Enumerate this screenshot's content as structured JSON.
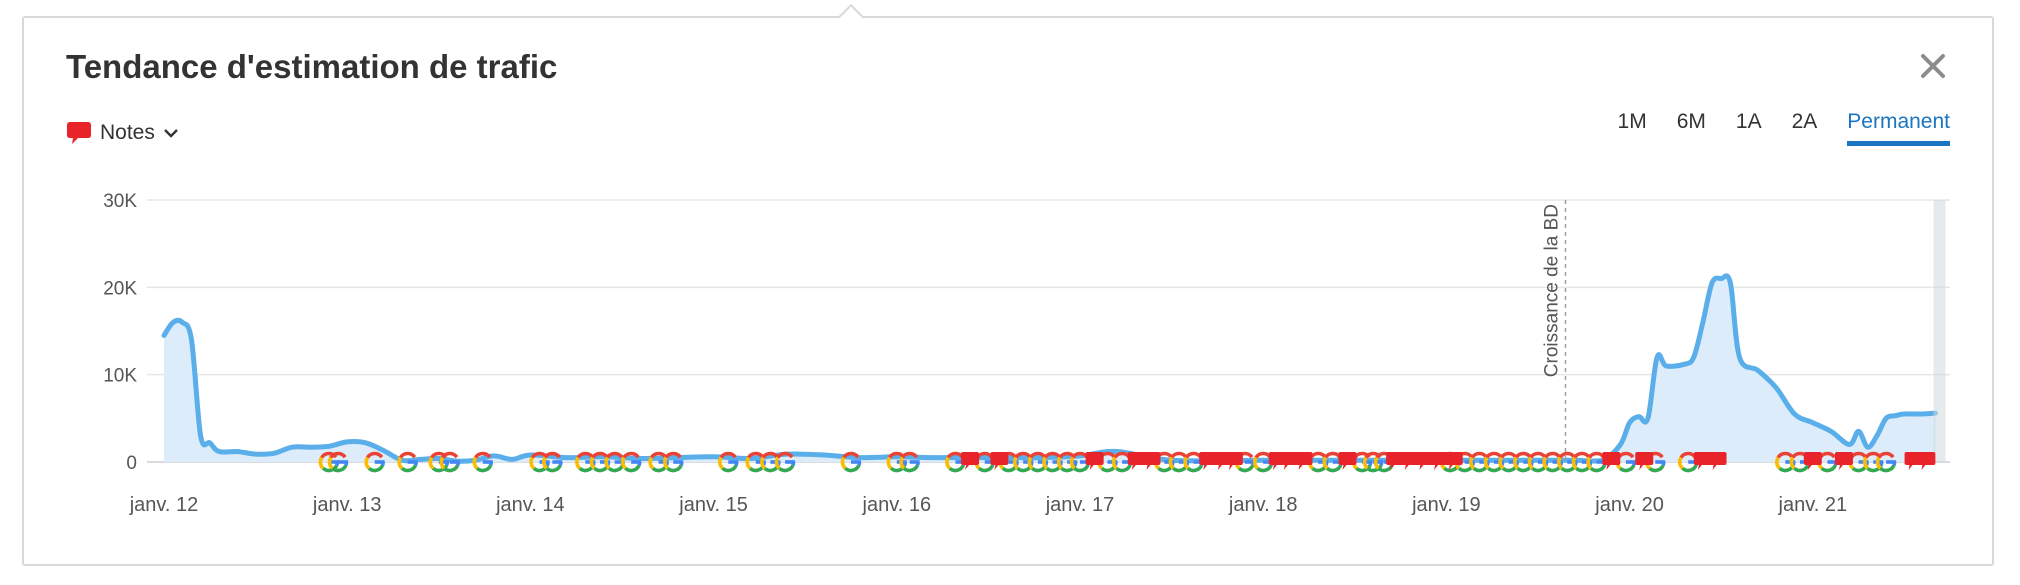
{
  "header": {
    "title": "Tendance d'estimation de trafic",
    "notes_label": "Notes"
  },
  "periods": [
    {
      "label": "1M",
      "active": false
    },
    {
      "label": "6M",
      "active": false
    },
    {
      "label": "1A",
      "active": false
    },
    {
      "label": "2A",
      "active": false
    },
    {
      "label": "Permanent",
      "active": true
    }
  ],
  "icons": {
    "close": "close-icon",
    "notes": "speech-bubble-icon",
    "dropdown": "chevron-down-icon",
    "google_update": "google-g-icon",
    "note_marker": "speech-bubble-icon"
  },
  "colors": {
    "line": "#5aaeea",
    "area": "#dcecfb",
    "accent": "#1a76c2",
    "note": "#e8242a",
    "google_blue": "#4285f4",
    "google_red": "#ea4335",
    "google_yellow": "#fbbc05",
    "google_green": "#34a853"
  },
  "chart_data": {
    "type": "area",
    "x_start": 2012.0,
    "x_end": 2021.71,
    "xticks": [
      2012,
      2013,
      2014,
      2015,
      2016,
      2017,
      2018,
      2019,
      2020,
      2021
    ],
    "xtick_labels": [
      "janv. 12",
      "janv. 13",
      "janv. 14",
      "janv. 15",
      "janv. 16",
      "janv. 17",
      "janv. 18",
      "janv. 19",
      "janv. 20",
      "janv. 21"
    ],
    "ylim": [
      0,
      30000
    ],
    "yticks": [
      0,
      10000,
      20000,
      30000
    ],
    "ytick_labels": [
      "0",
      "10K",
      "20K",
      "30K"
    ],
    "grid": true,
    "annotation": {
      "text": "Croissance de la BD",
      "x": 2019.65
    },
    "series": [
      {
        "x": [
          2012.0,
          2012.05,
          2012.1,
          2012.15,
          2012.2,
          2012.25,
          2012.3,
          2012.4,
          2012.5,
          2012.6,
          2012.7,
          2012.8,
          2012.9,
          2013.0,
          2013.1,
          2013.2,
          2013.3,
          2013.4,
          2013.5,
          2013.6,
          2013.7,
          2013.8,
          2013.9,
          2014.0,
          2014.2,
          2014.4,
          2014.6,
          2014.8,
          2015.0,
          2015.2,
          2015.4,
          2015.6,
          2015.8,
          2016.0,
          2016.2,
          2016.4,
          2016.6,
          2016.8,
          2017.0,
          2017.2,
          2017.5,
          2018.0,
          2018.5,
          2019.0,
          2019.5,
          2019.7,
          2019.85,
          2019.95,
          2020.0,
          2020.05,
          2020.1,
          2020.15,
          2020.2,
          2020.3,
          2020.35,
          2020.4,
          2020.45,
          2020.5,
          2020.55,
          2020.6,
          2020.7,
          2020.8,
          2020.9,
          2021.0,
          2021.1,
          2021.2,
          2021.25,
          2021.3,
          2021.35,
          2021.4,
          2021.45,
          2021.5,
          2021.6,
          2021.67
        ],
        "values": [
          14500,
          16000,
          16000,
          14000,
          3000,
          2200,
          1200,
          1200,
          900,
          1000,
          1700,
          1700,
          1800,
          2300,
          2200,
          1300,
          200,
          300,
          400,
          100,
          200,
          700,
          300,
          800,
          500,
          600,
          400,
          500,
          600,
          400,
          900,
          800,
          500,
          600,
          500,
          500,
          500,
          500,
          700,
          1200,
          200,
          200,
          200,
          200,
          200,
          200,
          200,
          2000,
          4500,
          5200,
          5000,
          12000,
          11000,
          11200,
          12000,
          16000,
          20500,
          21000,
          20500,
          12000,
          10500,
          8500,
          5500,
          4500,
          3500,
          2000,
          3500,
          1700,
          3000,
          5000,
          5300,
          5500,
          5500,
          5600
        ]
      }
    ],
    "google_updates": [
      2012.9,
      2012.95,
      2013.15,
      2013.33,
      2013.5,
      2013.56,
      2013.74,
      2014.05,
      2014.12,
      2014.3,
      2014.38,
      2014.46,
      2014.55,
      2014.7,
      2014.78,
      2015.08,
      2015.23,
      2015.31,
      2015.39,
      2015.75,
      2016.0,
      2016.07,
      2016.32,
      2016.48,
      2016.61,
      2016.69,
      2016.77,
      2016.85,
      2016.93,
      2017.0,
      2017.15,
      2017.23,
      2017.46,
      2017.54,
      2017.62,
      2017.9,
      2018.0,
      2018.3,
      2018.38,
      2018.54,
      2018.6,
      2018.66,
      2019.02,
      2019.1,
      2019.18,
      2019.26,
      2019.34,
      2019.42,
      2019.5,
      2019.58,
      2019.66,
      2019.74,
      2019.82,
      2019.98,
      2020.14,
      2020.32,
      2020.85,
      2020.93,
      2021.08,
      2021.25,
      2021.33,
      2021.4
    ],
    "note_markers": [
      2016.4,
      2016.56,
      2017.08,
      2017.31,
      2017.39,
      2017.7,
      2017.78,
      2017.84,
      2018.08,
      2018.14,
      2018.22,
      2018.46,
      2018.72,
      2018.8,
      2018.88,
      2018.96,
      2019.04,
      2019.9,
      2020.08,
      2020.4,
      2020.48,
      2021.0,
      2021.17,
      2021.55,
      2021.62
    ]
  }
}
